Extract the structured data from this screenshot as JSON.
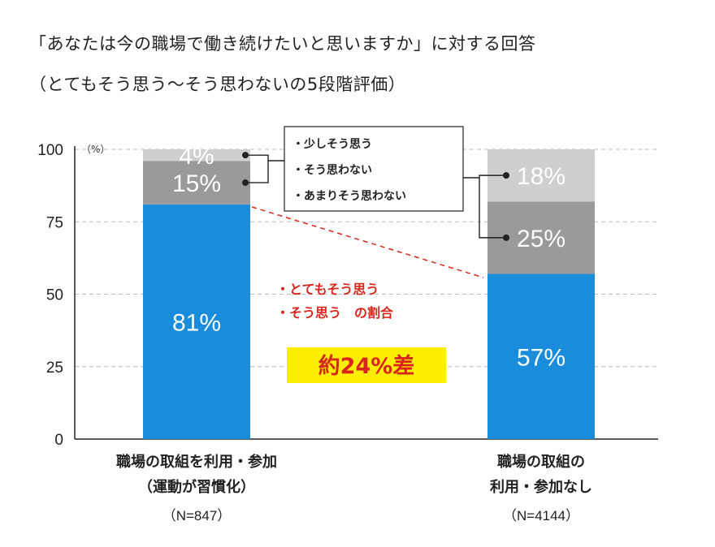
{
  "title_line1": "「あなたは今の職場で働き続けたいと思いますか」に対する回答",
  "title_line2": "（とてもそう思う〜そう思わないの5段階評価）",
  "chart_data": {
    "type": "bar",
    "stacked": true,
    "unit_label": "（%）",
    "ylim": [
      0,
      100
    ],
    "yticks": [
      "0",
      "25",
      "50",
      "75",
      "100"
    ],
    "grid": true,
    "categories": [
      {
        "label_lines": [
          "職場の取組を利用・参加",
          "（運動が習慣化）"
        ],
        "n": "（N=847）"
      },
      {
        "label_lines": [
          "職場の取組の",
          "利用・参加なし"
        ],
        "n": "（N=4144）"
      }
    ],
    "series": [
      {
        "values": [
          81,
          57
        ],
        "labels": [
          "81%",
          "57%"
        ],
        "color": "#1a8cdc"
      },
      {
        "values": [
          15,
          25
        ],
        "labels": [
          "15%",
          "25%"
        ],
        "color": "#9a9a9a"
      },
      {
        "values": [
          4,
          18
        ],
        "labels": [
          "4%",
          "18%"
        ],
        "color": "#cfcfcf"
      }
    ],
    "legend": {
      "items": [
        "・少しそう思う",
        "・そう思わない",
        "・あまりそう思わない"
      ],
      "placement": "top-center"
    },
    "annotation": {
      "lines": [
        "・とてもそう思う",
        "・そう思う　の割合"
      ],
      "difference": "約24%差",
      "highlight_color": "#ffee00",
      "text_color": "#d9261c"
    }
  }
}
